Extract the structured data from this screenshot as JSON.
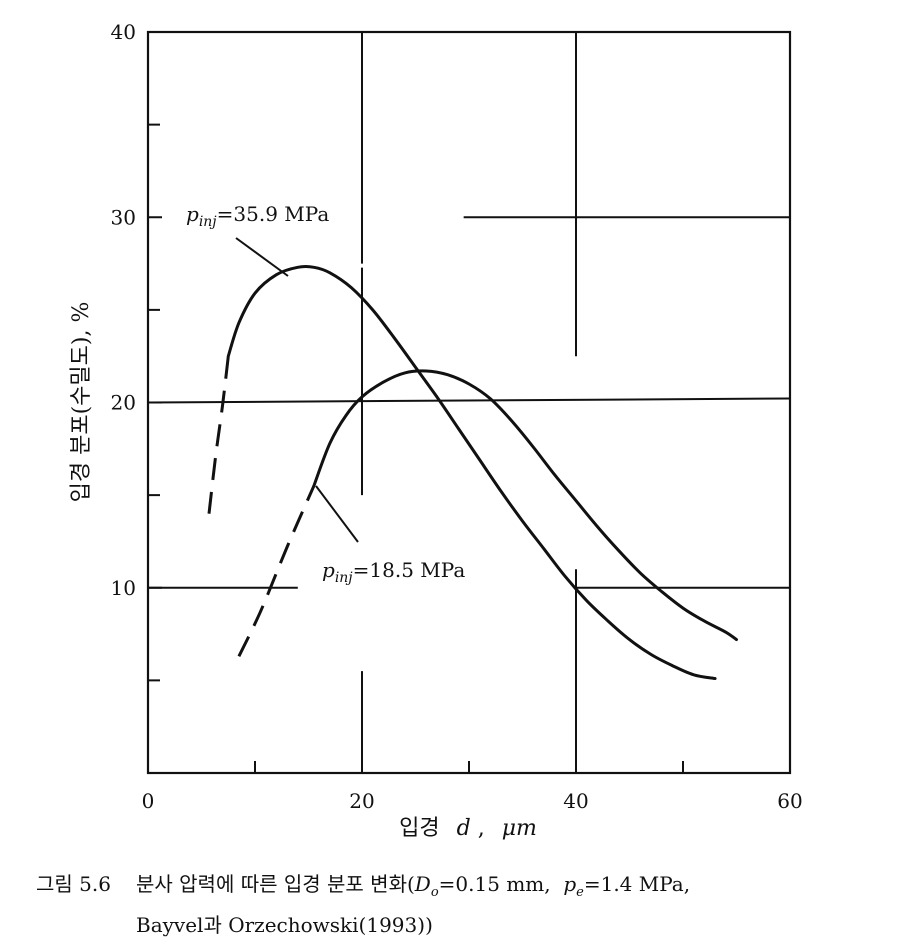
{
  "chart_data": {
    "type": "line",
    "xlabel_prefix": "입경",
    "xlabel_var": "d",
    "xlabel_unit": "μm",
    "ylabel": "입경 분포(수밀도),  %",
    "xlim": [
      0,
      60
    ],
    "ylim": [
      0,
      40
    ],
    "xticks": [
      0,
      20,
      40,
      60
    ],
    "yticks": [
      10,
      20,
      30,
      40
    ],
    "minor_xticks": [
      10,
      30,
      50
    ],
    "minor_yticks": [
      5,
      15,
      25,
      35
    ],
    "grid": "partial",
    "series": [
      {
        "name": "p_inj=35.9 MPa",
        "label_sym": "p",
        "label_sub": "inj",
        "label_val": "=35.9 MPa",
        "x": [
          7.5,
          8.5,
          10,
          12,
          14,
          15.5,
          17,
          19,
          21,
          23,
          25,
          27,
          29,
          31,
          33,
          35,
          37,
          39,
          41,
          43,
          45,
          47,
          49,
          51,
          53
        ],
        "y": [
          22.5,
          24.3,
          25.9,
          26.9,
          27.3,
          27.3,
          27.0,
          26.2,
          25.0,
          23.5,
          21.9,
          20.3,
          18.6,
          16.9,
          15.2,
          13.6,
          12.1,
          10.6,
          9.3,
          8.2,
          7.2,
          6.4,
          5.8,
          5.3,
          5.1
        ],
        "dashed_x": [
          5.7,
          6.3,
          7,
          7.5
        ],
        "dashed_y": [
          14.0,
          17.0,
          20.0,
          22.5
        ]
      },
      {
        "name": "p_inj=18.5 MPa",
        "label_sym": "p",
        "label_sub": "inj",
        "label_val": "=18.5 MPa",
        "x": [
          15.5,
          17,
          18.5,
          20,
          22,
          24,
          26,
          28,
          30,
          32,
          34,
          36,
          38,
          40,
          42,
          44,
          46,
          48,
          50,
          52,
          54,
          55
        ],
        "y": [
          15.5,
          17.8,
          19.3,
          20.3,
          21.1,
          21.6,
          21.7,
          21.5,
          21.0,
          20.2,
          19.0,
          17.6,
          16.1,
          14.7,
          13.3,
          12.0,
          10.8,
          9.8,
          8.9,
          8.2,
          7.6,
          7.2
        ],
        "dashed_x": [
          8.5,
          10.5,
          13,
          15.5
        ],
        "dashed_y": [
          6.3,
          8.7,
          12.2,
          15.5
        ]
      }
    ],
    "tick_labels": [
      "0",
      "20",
      "40",
      "60",
      "10",
      "20",
      "30",
      "40"
    ]
  },
  "caption": {
    "number": "그림 5.6",
    "line1_a": "분사 압력에 따른 입경 분포 변화(",
    "d_sym": "D",
    "d_sub": "o",
    "line1_b": "=0.15 mm,  ",
    "p_sym": "p",
    "p_sub": "e",
    "line1_c": "=1.4 MPa,",
    "line2": "Bayvel과 Orzechowski(1993))"
  }
}
